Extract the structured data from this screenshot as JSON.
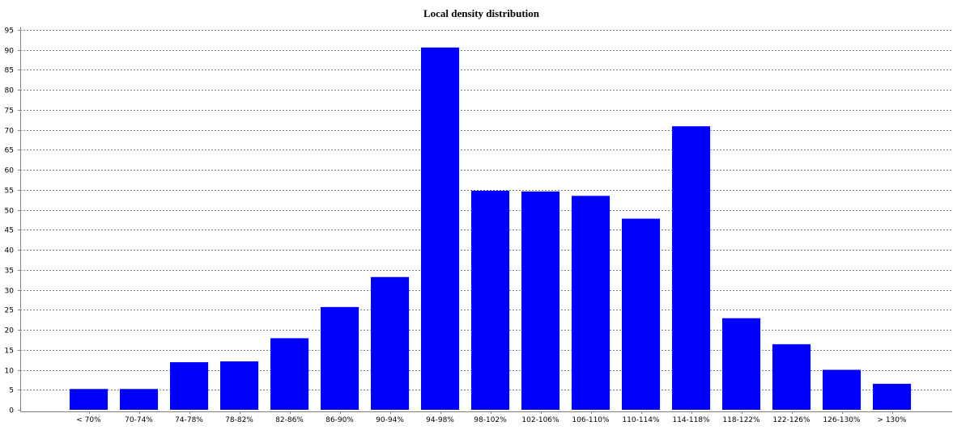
{
  "chart_data": {
    "type": "bar",
    "title": "Local density distribution",
    "xlabel": "",
    "ylabel": "",
    "categories": [
      "< 70%",
      "70-74%",
      "74-78%",
      "78-82%",
      "82-86%",
      "86-90%",
      "90-94%",
      "94-98%",
      "98-102%",
      "102-106%",
      "106-110%",
      "110-114%",
      "114-118%",
      "118-122%",
      "122-126%",
      "126-130%",
      "> 130%"
    ],
    "values": [
      5.2,
      5.2,
      11.9,
      12.1,
      17.9,
      25.7,
      33.2,
      90.6,
      54.8,
      54.6,
      53.5,
      47.8,
      70.9,
      22.9,
      16.4,
      10.0,
      6.5
    ],
    "ylim": [
      0,
      95
    ],
    "ytick_step": 5,
    "grid": true,
    "legend": "none",
    "bar_color": "#0000ff",
    "grid_color": "#808080"
  }
}
